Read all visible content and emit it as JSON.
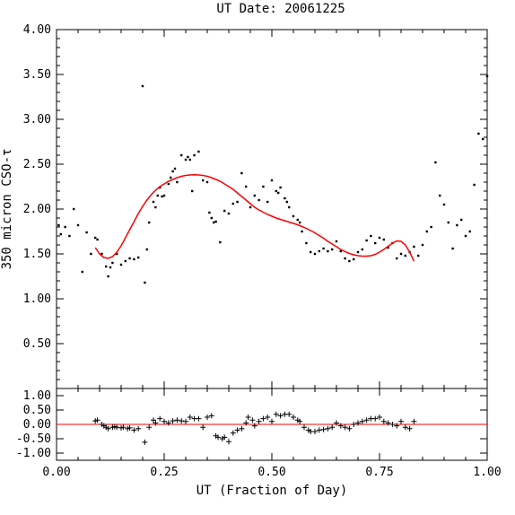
{
  "chart_data": [
    {
      "type": "scatter",
      "panel": "main",
      "title": "UT Date: 20061225",
      "ylabel": "350 micron CSO-τ",
      "xlim": [
        0,
        1
      ],
      "ylim": [
        0,
        4
      ],
      "yticks": [
        "0.50",
        "1.00",
        "1.50",
        "2.00",
        "2.50",
        "3.00",
        "3.50",
        "4.00"
      ],
      "xticks": [
        "0.00",
        "0.25",
        "0.50",
        "0.75",
        "1.00"
      ],
      "grid": false,
      "colors": {
        "points": "#000000",
        "fit": "#ff0000"
      },
      "series": [
        {
          "kind": "points",
          "x": [
            0.005,
            0.01,
            0.02,
            0.03,
            0.04,
            0.05,
            0.06,
            0.07,
            0.08,
            0.09,
            0.095,
            0.105,
            0.115,
            0.12,
            0.125,
            0.13,
            0.14,
            0.15,
            0.16,
            0.17,
            0.18,
            0.19,
            0.2,
            0.205,
            0.21,
            0.215,
            0.225,
            0.23,
            0.235,
            0.24,
            0.245,
            0.25,
            0.26,
            0.265,
            0.27,
            0.275,
            0.28,
            0.29,
            0.3,
            0.305,
            0.31,
            0.315,
            0.32,
            0.33,
            0.34,
            0.35,
            0.355,
            0.36,
            0.365,
            0.37,
            0.38,
            0.39,
            0.4,
            0.41,
            0.42,
            0.43,
            0.44,
            0.45,
            0.46,
            0.47,
            0.48,
            0.49,
            0.5,
            0.51,
            0.515,
            0.52,
            0.53,
            0.535,
            0.54,
            0.55,
            0.56,
            0.565,
            0.57,
            0.58,
            0.59,
            0.6,
            0.61,
            0.62,
            0.63,
            0.64,
            0.65,
            0.66,
            0.67,
            0.68,
            0.69,
            0.7,
            0.71,
            0.72,
            0.73,
            0.74,
            0.75,
            0.76,
            0.77,
            0.78,
            0.79,
            0.8,
            0.81,
            0.82,
            0.83,
            0.84,
            0.85,
            0.86,
            0.87,
            0.88,
            0.89,
            0.9,
            0.91,
            0.92,
            0.93,
            0.94,
            0.95,
            0.96,
            0.97,
            0.98,
            0.99,
            1.0
          ],
          "y": [
            1.82,
            1.72,
            1.8,
            1.7,
            2.0,
            1.82,
            1.3,
            1.74,
            1.5,
            1.68,
            1.66,
            1.5,
            1.36,
            1.25,
            1.35,
            1.4,
            1.5,
            1.38,
            1.42,
            1.45,
            1.44,
            1.46,
            3.37,
            1.18,
            1.55,
            1.85,
            2.08,
            2.02,
            2.15,
            2.24,
            2.14,
            2.15,
            2.28,
            2.35,
            2.42,
            2.45,
            2.3,
            2.6,
            2.55,
            2.58,
            2.55,
            2.2,
            2.6,
            2.64,
            2.32,
            2.3,
            1.96,
            1.9,
            1.85,
            1.86,
            1.63,
            1.98,
            1.95,
            2.06,
            2.08,
            2.4,
            2.25,
            2.02,
            2.15,
            2.1,
            2.25,
            2.08,
            2.32,
            2.2,
            2.18,
            2.24,
            2.12,
            2.08,
            2.02,
            1.92,
            1.88,
            1.85,
            1.75,
            1.62,
            1.52,
            1.5,
            1.53,
            1.56,
            1.53,
            1.55,
            1.64,
            1.53,
            1.45,
            1.42,
            1.44,
            1.52,
            1.55,
            1.65,
            1.7,
            1.62,
            1.68,
            1.66,
            1.57,
            1.62,
            1.45,
            1.5,
            1.48,
            1.52,
            1.58,
            1.48,
            1.6,
            1.75,
            1.8,
            2.52,
            2.15,
            2.05,
            1.85,
            1.56,
            1.82,
            1.88,
            1.7,
            1.75,
            2.27,
            2.84,
            2.78,
            3.48
          ]
        },
        {
          "kind": "fit",
          "x": [
            0.09,
            0.1,
            0.11,
            0.12,
            0.13,
            0.14,
            0.15,
            0.16,
            0.17,
            0.18,
            0.19,
            0.2,
            0.21,
            0.22,
            0.23,
            0.24,
            0.25,
            0.26,
            0.27,
            0.28,
            0.29,
            0.3,
            0.31,
            0.32,
            0.33,
            0.34,
            0.35,
            0.36,
            0.37,
            0.38,
            0.39,
            0.4,
            0.41,
            0.42,
            0.43,
            0.44,
            0.45,
            0.46,
            0.47,
            0.48,
            0.49,
            0.5,
            0.51,
            0.52,
            0.53,
            0.54,
            0.55,
            0.56,
            0.57,
            0.58,
            0.59,
            0.6,
            0.61,
            0.62,
            0.63,
            0.64,
            0.65,
            0.66,
            0.67,
            0.68,
            0.69,
            0.7,
            0.71,
            0.72,
            0.73,
            0.74,
            0.75,
            0.76,
            0.77,
            0.78,
            0.79,
            0.8,
            0.81,
            0.82,
            0.83
          ],
          "y": [
            1.57,
            1.5,
            1.46,
            1.45,
            1.47,
            1.52,
            1.59,
            1.68,
            1.77,
            1.86,
            1.95,
            2.03,
            2.1,
            2.16,
            2.21,
            2.25,
            2.28,
            2.31,
            2.33,
            2.35,
            2.365,
            2.375,
            2.38,
            2.382,
            2.38,
            2.375,
            2.365,
            2.35,
            2.33,
            2.31,
            2.28,
            2.25,
            2.22,
            2.18,
            2.14,
            2.1,
            2.06,
            2.02,
            1.99,
            1.965,
            1.94,
            1.92,
            1.9,
            1.885,
            1.87,
            1.855,
            1.84,
            1.825,
            1.805,
            1.785,
            1.76,
            1.735,
            1.705,
            1.675,
            1.64,
            1.61,
            1.58,
            1.55,
            1.525,
            1.505,
            1.49,
            1.48,
            1.475,
            1.475,
            1.48,
            1.495,
            1.52,
            1.55,
            1.585,
            1.62,
            1.645,
            1.64,
            1.6,
            1.52,
            1.42
          ]
        }
      ]
    },
    {
      "type": "scatter",
      "panel": "residuals",
      "xlabel": "UT (Fraction of Day)",
      "xlim": [
        0,
        1
      ],
      "ylim": [
        -1.25,
        1.25
      ],
      "yticks": [
        "1.00",
        "0.50",
        "0.00",
        "-0.50",
        "-1.00"
      ],
      "xticks": [
        "0.00",
        "0.25",
        "0.50",
        "0.75",
        "1.00"
      ],
      "reference_line": 0,
      "colors": {
        "points": "#000000",
        "zero_line": "#ff0000"
      },
      "series": [
        {
          "kind": "residual",
          "x": [
            0.09,
            0.095,
            0.105,
            0.11,
            0.115,
            0.12,
            0.13,
            0.135,
            0.14,
            0.15,
            0.155,
            0.165,
            0.17,
            0.18,
            0.19,
            0.205,
            0.215,
            0.225,
            0.23,
            0.24,
            0.25,
            0.26,
            0.27,
            0.28,
            0.29,
            0.3,
            0.31,
            0.32,
            0.33,
            0.34,
            0.35,
            0.36,
            0.37,
            0.375,
            0.385,
            0.39,
            0.4,
            0.41,
            0.42,
            0.43,
            0.44,
            0.445,
            0.455,
            0.46,
            0.47,
            0.48,
            0.49,
            0.5,
            0.51,
            0.52,
            0.53,
            0.54,
            0.55,
            0.56,
            0.565,
            0.575,
            0.585,
            0.59,
            0.6,
            0.61,
            0.62,
            0.63,
            0.64,
            0.65,
            0.66,
            0.67,
            0.68,
            0.69,
            0.7,
            0.71,
            0.72,
            0.73,
            0.74,
            0.75,
            0.76,
            0.77,
            0.78,
            0.79,
            0.8,
            0.81,
            0.82,
            0.83
          ],
          "y": [
            0.12,
            0.15,
            0.0,
            -0.05,
            -0.1,
            -0.15,
            -0.1,
            -0.08,
            -0.1,
            -0.12,
            -0.1,
            -0.15,
            -0.12,
            -0.2,
            -0.15,
            -0.62,
            -0.1,
            0.15,
            0.05,
            0.2,
            0.1,
            0.05,
            0.12,
            0.15,
            0.12,
            0.1,
            0.25,
            0.2,
            0.2,
            -0.1,
            0.25,
            0.3,
            -0.4,
            -0.45,
            -0.5,
            -0.45,
            -0.6,
            -0.3,
            -0.2,
            -0.15,
            0.05,
            0.25,
            0.15,
            -0.05,
            0.1,
            0.2,
            0.25,
            0.1,
            0.35,
            0.3,
            0.35,
            0.35,
            0.25,
            0.15,
            0.1,
            -0.1,
            -0.2,
            -0.25,
            -0.25,
            -0.2,
            -0.18,
            -0.15,
            -0.1,
            0.05,
            -0.05,
            -0.1,
            -0.15,
            0.0,
            0.05,
            0.1,
            0.15,
            0.2,
            0.2,
            0.25,
            0.1,
            0.05,
            0.0,
            -0.05,
            0.1,
            -0.1,
            -0.15,
            0.1
          ]
        }
      ]
    }
  ]
}
